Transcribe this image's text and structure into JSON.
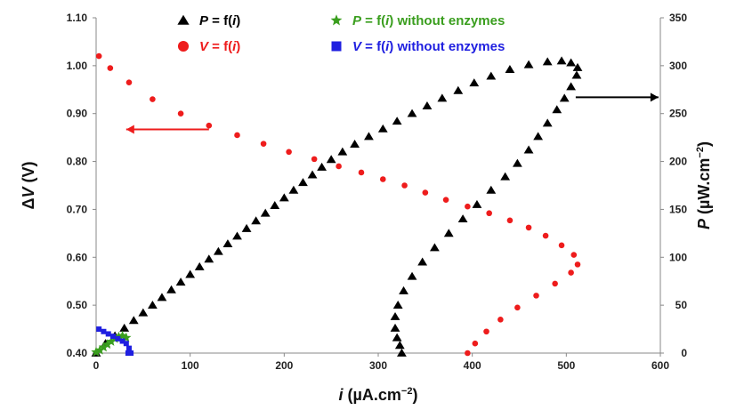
{
  "chart_data": {
    "type": "scatter",
    "x_axis": {
      "label_parts": [
        "i",
        " (µA.cm",
        "−2",
        ")"
      ],
      "range": [
        0,
        600
      ],
      "ticks": [
        0,
        100,
        200,
        300,
        400,
        500,
        600
      ]
    },
    "y_axis_left": {
      "label_parts": [
        "Δ",
        "V",
        " (V)"
      ],
      "range": [
        0.4,
        1.1
      ],
      "ticks": [
        "0.40",
        "0.50",
        "0.60",
        "0.70",
        "0.80",
        "0.90",
        "1.00",
        "1.10"
      ]
    },
    "y_axis_right": {
      "label_parts": [
        "P",
        " (µW.cm",
        "−2",
        ")"
      ],
      "range": [
        0,
        350
      ],
      "ticks": [
        0,
        50,
        100,
        150,
        200,
        250,
        300,
        350
      ]
    },
    "legend": [
      {
        "key": "p",
        "parts": [
          "P",
          " = f(",
          "i",
          ")"
        ],
        "color": "#000000",
        "marker": "triangle"
      },
      {
        "key": "v",
        "parts": [
          "V",
          " = f(",
          "i",
          ")"
        ],
        "color": "#ee1c1c",
        "marker": "circle"
      },
      {
        "key": "p_no_enz",
        "parts": [
          "P",
          " = f(",
          "i",
          ") without enzymes"
        ],
        "color": "#3a9e1e",
        "marker": "star"
      },
      {
        "key": "v_no_enz",
        "parts": [
          "V",
          " = f(",
          "i",
          ") without enzymes"
        ],
        "color": "#1f1fe0",
        "marker": "square"
      }
    ],
    "arrows": [
      {
        "target_axis": "left",
        "from": [
          120,
          0.867
        ],
        "to": [
          32,
          0.867
        ],
        "color": "#ee1c1c"
      },
      {
        "target_axis": "right",
        "from": [
          510,
          267
        ],
        "to": [
          598,
          267
        ],
        "color": "#000000"
      }
    ],
    "series": [
      {
        "key": "v",
        "axis": "left",
        "color": "#ee1c1c",
        "marker": "circle",
        "points": [
          [
            395,
            0.4
          ],
          [
            403,
            0.42
          ],
          [
            415,
            0.445
          ],
          [
            430,
            0.47
          ],
          [
            448,
            0.495
          ],
          [
            468,
            0.52
          ],
          [
            488,
            0.545
          ],
          [
            505,
            0.568
          ],
          [
            512,
            0.585
          ],
          [
            508,
            0.605
          ],
          [
            495,
            0.625
          ],
          [
            478,
            0.645
          ],
          [
            460,
            0.662
          ],
          [
            440,
            0.677
          ],
          [
            418,
            0.692
          ],
          [
            395,
            0.706
          ],
          [
            372,
            0.72
          ],
          [
            350,
            0.735
          ],
          [
            328,
            0.75
          ],
          [
            305,
            0.763
          ],
          [
            282,
            0.777
          ],
          [
            258,
            0.79
          ],
          [
            232,
            0.805
          ],
          [
            205,
            0.82
          ],
          [
            178,
            0.837
          ],
          [
            150,
            0.855
          ],
          [
            120,
            0.875
          ],
          [
            90,
            0.9
          ],
          [
            60,
            0.93
          ],
          [
            35,
            0.965
          ],
          [
            15,
            0.995
          ],
          [
            3,
            1.02
          ]
        ]
      },
      {
        "key": "p",
        "axis": "right",
        "color": "#000000",
        "marker": "triangle",
        "points": [
          [
            0,
            0
          ],
          [
            10,
            10
          ],
          [
            20,
            18
          ],
          [
            30,
            26
          ],
          [
            40,
            34
          ],
          [
            50,
            42
          ],
          [
            60,
            50
          ],
          [
            70,
            58
          ],
          [
            80,
            66
          ],
          [
            90,
            74
          ],
          [
            100,
            82
          ],
          [
            110,
            90
          ],
          [
            120,
            98
          ],
          [
            130,
            106
          ],
          [
            140,
            114
          ],
          [
            150,
            122
          ],
          [
            160,
            130
          ],
          [
            170,
            138
          ],
          [
            180,
            146
          ],
          [
            190,
            154
          ],
          [
            200,
            162
          ],
          [
            210,
            170
          ],
          [
            220,
            178
          ],
          [
            230,
            186
          ],
          [
            240,
            194
          ],
          [
            250,
            202
          ],
          [
            262,
            210
          ],
          [
            275,
            218
          ],
          [
            290,
            226
          ],
          [
            305,
            234
          ],
          [
            320,
            242
          ],
          [
            336,
            250
          ],
          [
            352,
            258
          ],
          [
            368,
            266
          ],
          [
            385,
            274
          ],
          [
            402,
            282
          ],
          [
            420,
            289
          ],
          [
            440,
            296
          ],
          [
            460,
            301
          ],
          [
            480,
            304
          ],
          [
            495,
            305
          ],
          [
            505,
            303
          ],
          [
            512,
            298
          ],
          [
            511,
            290
          ],
          [
            505,
            278
          ],
          [
            498,
            266
          ],
          [
            490,
            254
          ],
          [
            480,
            240
          ],
          [
            470,
            226
          ],
          [
            460,
            212
          ],
          [
            448,
            198
          ],
          [
            435,
            184
          ],
          [
            420,
            170
          ],
          [
            405,
            155
          ],
          [
            390,
            140
          ],
          [
            375,
            125
          ],
          [
            360,
            110
          ],
          [
            347,
            95
          ],
          [
            336,
            80
          ],
          [
            327,
            65
          ],
          [
            321,
            50
          ],
          [
            318,
            38
          ],
          [
            318,
            26
          ],
          [
            320,
            16
          ],
          [
            323,
            8
          ],
          [
            325,
            0
          ]
        ]
      },
      {
        "key": "p_no_enz",
        "axis": "right",
        "color": "#3a9e1e",
        "marker": "star",
        "points": [
          [
            0,
            1
          ],
          [
            4,
            3
          ],
          [
            8,
            6
          ],
          [
            12,
            9
          ],
          [
            16,
            12
          ],
          [
            20,
            15
          ],
          [
            24,
            17
          ],
          [
            28,
            18
          ],
          [
            32,
            16
          ]
        ]
      },
      {
        "key": "v_no_enz",
        "axis": "left",
        "color": "#1f1fe0",
        "marker": "square",
        "points": [
          [
            3,
            0.45
          ],
          [
            8,
            0.445
          ],
          [
            13,
            0.44
          ],
          [
            18,
            0.435
          ],
          [
            23,
            0.43
          ],
          [
            28,
            0.425
          ],
          [
            32,
            0.42
          ],
          [
            35,
            0.41
          ],
          [
            37,
            0.4
          ],
          [
            34,
            0.4
          ]
        ]
      }
    ]
  }
}
